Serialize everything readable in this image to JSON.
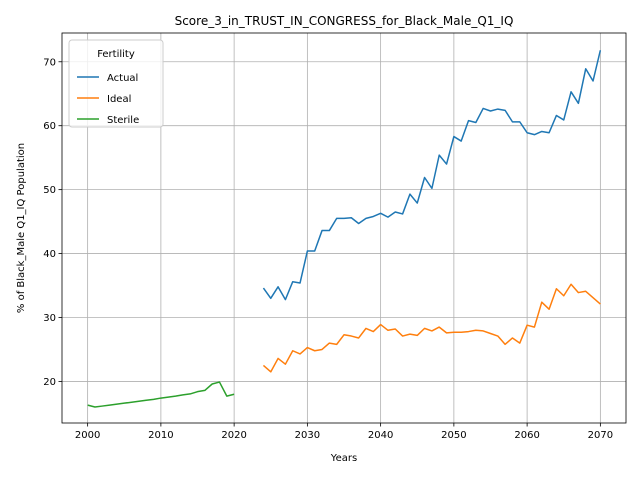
{
  "chart_data": {
    "type": "line",
    "title": "Score_3_in_TRUST_IN_CONGRESS_for_Black_Male_Q1_IQ",
    "xlabel": "Years",
    "ylabel": "% of Black_Male Q1_IQ Population",
    "xlim": [
      1996.5,
      2073.5
    ],
    "ylim": [
      13.5,
      74.5
    ],
    "xticks": [
      2000,
      2010,
      2020,
      2030,
      2040,
      2050,
      2060,
      2070
    ],
    "yticks": [
      20,
      30,
      40,
      50,
      60,
      70
    ],
    "grid": true,
    "legend": {
      "title": "Fertility",
      "placement": "top-left"
    },
    "series": [
      {
        "name": "Actual",
        "color": "#1f77b4",
        "x": [
          2024,
          2025,
          2026,
          2027,
          2028,
          2029,
          2030,
          2031,
          2032,
          2033,
          2034,
          2035,
          2036,
          2037,
          2038,
          2039,
          2040,
          2041,
          2042,
          2043,
          2044,
          2045,
          2046,
          2047,
          2048,
          2049,
          2050,
          2051,
          2052,
          2053,
          2054,
          2055,
          2056,
          2057,
          2058,
          2059,
          2060,
          2061,
          2062,
          2063,
          2064,
          2065,
          2066,
          2067,
          2068,
          2069,
          2070
        ],
        "y": [
          34.6,
          33.0,
          34.8,
          32.8,
          35.6,
          35.4,
          40.4,
          40.4,
          43.6,
          43.6,
          45.5,
          45.5,
          45.6,
          44.7,
          45.5,
          45.8,
          46.3,
          45.7,
          46.5,
          46.2,
          49.3,
          47.9,
          51.9,
          50.2,
          55.4,
          54.0,
          58.3,
          57.6,
          60.8,
          60.5,
          62.7,
          62.3,
          62.6,
          62.4,
          60.6,
          60.6,
          58.9,
          58.6,
          59.1,
          58.9,
          61.6,
          60.9,
          65.3,
          63.5,
          68.9,
          67.0,
          71.8
        ]
      },
      {
        "name": "Ideal",
        "color": "#ff7f0e",
        "x": [
          2024,
          2025,
          2026,
          2027,
          2028,
          2029,
          2030,
          2031,
          2032,
          2033,
          2034,
          2035,
          2036,
          2037,
          2038,
          2039,
          2040,
          2041,
          2042,
          2043,
          2044,
          2045,
          2046,
          2047,
          2048,
          2049,
          2050,
          2051,
          2052,
          2053,
          2054,
          2055,
          2056,
          2057,
          2058,
          2059,
          2060,
          2061,
          2062,
          2063,
          2064,
          2065,
          2066,
          2067,
          2068,
          2069,
          2070
        ],
        "y": [
          22.5,
          21.5,
          23.6,
          22.7,
          24.8,
          24.3,
          25.3,
          24.8,
          25.0,
          26.0,
          25.8,
          27.3,
          27.1,
          26.8,
          28.3,
          27.8,
          28.9,
          28.0,
          28.2,
          27.1,
          27.4,
          27.2,
          28.3,
          27.9,
          28.5,
          27.6,
          27.7,
          27.7,
          27.8,
          28.0,
          27.9,
          27.5,
          27.1,
          25.8,
          26.8,
          26.0,
          28.8,
          28.5,
          32.4,
          31.3,
          34.5,
          33.4,
          35.2,
          33.9,
          34.1,
          33.1,
          32.1
        ]
      },
      {
        "name": "Sterile",
        "color": "#2ca02c",
        "x": [
          2000,
          2001,
          2002,
          2003,
          2004,
          2005,
          2006,
          2007,
          2008,
          2009,
          2010,
          2011,
          2012,
          2013,
          2014,
          2015,
          2016,
          2017,
          2018,
          2019,
          2020
        ],
        "y": [
          16.3,
          16.0,
          16.15,
          16.3,
          16.45,
          16.6,
          16.75,
          16.9,
          17.05,
          17.2,
          17.4,
          17.55,
          17.7,
          17.9,
          18.05,
          18.4,
          18.6,
          19.6,
          19.9,
          17.7,
          18.0
        ]
      }
    ]
  }
}
